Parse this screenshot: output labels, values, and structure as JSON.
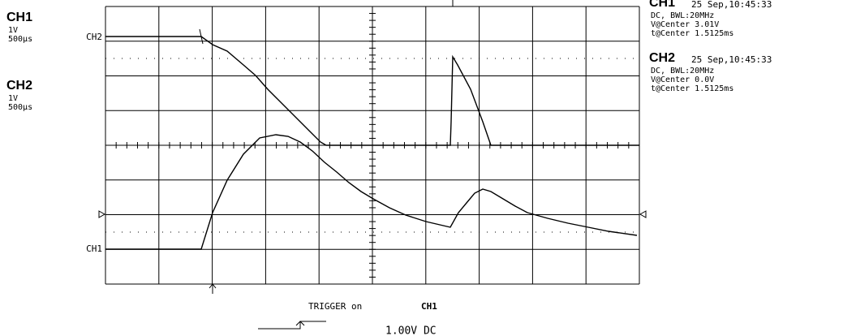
{
  "left_panel": {
    "ch1": {
      "name": "CH1",
      "volts": "1V",
      "time": "500μs"
    },
    "ch2": {
      "name": "CH2",
      "volts": "1V",
      "time": "500μs"
    }
  },
  "trace_labels": {
    "ch2": "CH2",
    "ch1": "CH1"
  },
  "info": [
    {
      "name": "CH1",
      "date": "25 Sep,10:45:33",
      "coupling": "DC, BWL:20MHz",
      "v_center": "V@Center 3.01V",
      "t_center": "t@Center 1.5125ms"
    },
    {
      "name": "CH2",
      "date": "25 Sep,10:45:33",
      "coupling": "DC, BWL:20MHz",
      "v_center": "V@Center 0.0V",
      "t_center": "t@Center 1.5125ms"
    }
  ],
  "trigger": {
    "text": "TRIGGER on",
    "source": "CH1",
    "level": "1.00V DC"
  }
}
